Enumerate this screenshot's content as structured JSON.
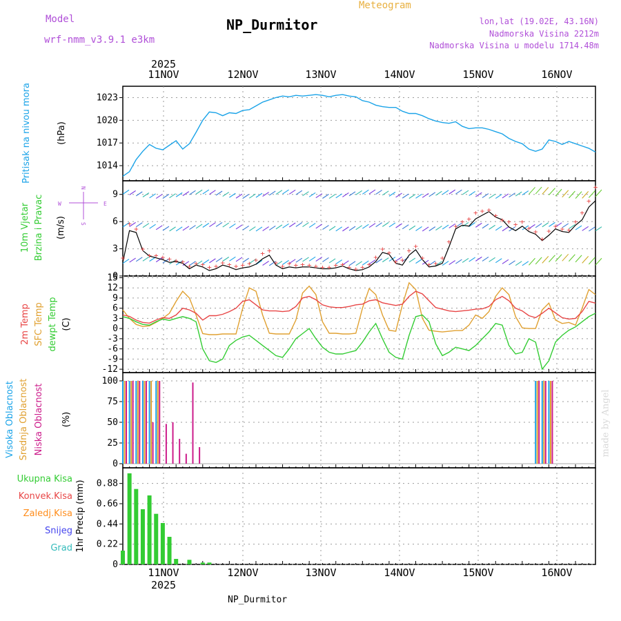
{
  "header": {
    "model_label": "Model",
    "model_name": "wrf-nmm_v3.9.1 e3km",
    "title": "NP_Durmitor",
    "subtitle": "Meteogram",
    "lonlat": "lon,lat (19.02E, 43.16N)",
    "elevation": "Nadmorska Visina 2212m",
    "model_elevation": "Nadmorska Visina u modelu 1714.48m",
    "footer": "NP_Durmitor",
    "watermark": "made by Angel"
  },
  "colors": {
    "pressure": "#1aa3e8",
    "temp2m": "#e84545",
    "sfc": "#e0a030",
    "dewpt": "#33cc33",
    "wind_black": "#000000",
    "wind_red": "#e84545",
    "high_cloud": "#1aa3e8",
    "mid_cloud": "#e0a030",
    "low_cloud": "#cc1a8a",
    "precip_total": "#33cc33",
    "precip_conv": "#e84545",
    "precip_frozen": "#ff8c1a",
    "snow": "#4444ee",
    "graupel": "#33bbbb",
    "purple_text": "#b04fd8",
    "orange_text": "#e8b040"
  },
  "chart_data": [
    {
      "type": "line",
      "title": "Pritisak na nivou mora",
      "ylabel": "(hPa)",
      "x": [
        0,
        1,
        2,
        3,
        4,
        5,
        6,
        7,
        8,
        9,
        10,
        11,
        12,
        13,
        14,
        15,
        16,
        17,
        18,
        19,
        20,
        21,
        22,
        23,
        24,
        25,
        26,
        27,
        28,
        29,
        30,
        31,
        32,
        33,
        34,
        35,
        36,
        37,
        38,
        39,
        40,
        41,
        42,
        43,
        44,
        45,
        46,
        47,
        48,
        49,
        50,
        51,
        52,
        53,
        54,
        55,
        56,
        57,
        58,
        59,
        60,
        61,
        62,
        63,
        64,
        65,
        66,
        67,
        68,
        69,
        70,
        71
      ],
      "y": [
        1012.6,
        1013.2,
        1014.8,
        1015.9,
        1016.8,
        1016.3,
        1016.1,
        1016.7,
        1017.3,
        1016.2,
        1016.9,
        1018.4,
        1020.0,
        1021.1,
        1021.0,
        1020.6,
        1021.0,
        1020.9,
        1021.3,
        1021.4,
        1021.9,
        1022.4,
        1022.7,
        1023.0,
        1023.2,
        1023.1,
        1023.3,
        1023.2,
        1023.3,
        1023.4,
        1023.3,
        1023.1,
        1023.3,
        1023.4,
        1023.2,
        1023.1,
        1022.6,
        1022.4,
        1022.0,
        1021.8,
        1021.7,
        1021.7,
        1021.2,
        1020.9,
        1020.9,
        1020.6,
        1020.2,
        1019.9,
        1019.7,
        1019.6,
        1019.8,
        1019.2,
        1018.9,
        1019.0,
        1019.0,
        1018.8,
        1018.5,
        1018.2,
        1017.6,
        1017.2,
        1016.9,
        1016.2,
        1015.9,
        1016.2,
        1017.4,
        1017.2,
        1016.8,
        1017.2,
        1016.9,
        1016.6,
        1016.3,
        1015.8
      ],
      "yticks": [
        1014,
        1017,
        1020,
        1023
      ],
      "ylim": [
        1012,
        1024.5
      ]
    },
    {
      "type": "line",
      "title": "10m Vjetar Brzina i Pravac",
      "ylabel": "(m/s)",
      "compass": {
        "n": "N",
        "e": "E",
        "w": "W",
        "s": "S"
      },
      "x": [
        0,
        1,
        2,
        3,
        4,
        5,
        6,
        7,
        8,
        9,
        10,
        11,
        12,
        13,
        14,
        15,
        16,
        17,
        18,
        19,
        20,
        21,
        22,
        23,
        24,
        25,
        26,
        27,
        28,
        29,
        30,
        31,
        32,
        33,
        34,
        35,
        36,
        37,
        38,
        39,
        40,
        41,
        42,
        43,
        44,
        45,
        46,
        47,
        48,
        49,
        50,
        51,
        52,
        53,
        54,
        55,
        56,
        57,
        58,
        59,
        60,
        61,
        62,
        63,
        64,
        65,
        66,
        67,
        68,
        69,
        70,
        71
      ],
      "series": [
        {
          "name": "wind speed",
          "values": [
            1.5,
            5.0,
            4.8,
            2.8,
            2.2,
            2.0,
            1.8,
            1.5,
            1.6,
            1.4,
            0.8,
            1.2,
            1.0,
            0.6,
            0.8,
            1.2,
            1.0,
            0.7,
            0.9,
            1.0,
            1.3,
            1.9,
            2.3,
            1.2,
            0.8,
            1.0,
            0.9,
            1.0,
            1.0,
            0.9,
            0.8,
            0.8,
            0.9,
            1.1,
            0.8,
            0.6,
            0.7,
            1.0,
            1.6,
            2.6,
            2.4,
            1.4,
            1.2,
            2.3,
            2.9,
            1.8,
            1.0,
            1.1,
            1.4,
            3.2,
            5.2,
            5.6,
            5.5,
            6.3,
            6.7,
            7.1,
            6.5,
            6.2,
            5.4,
            5.0,
            5.5,
            4.9,
            4.6,
            3.9,
            4.5,
            5.2,
            4.9,
            4.8,
            5.6,
            6.2,
            7.6,
            8.3
          ]
        },
        {
          "name": "wind gust",
          "values": [
            2.0,
            5.8,
            5.2,
            3.0,
            2.3,
            2.3,
            2.1,
            1.9,
            1.7,
            1.6,
            1.1,
            1.4,
            1.3,
            1.0,
            1.1,
            1.5,
            1.3,
            1.1,
            1.2,
            1.4,
            1.8,
            2.5,
            2.8,
            1.5,
            1.1,
            1.4,
            1.2,
            1.3,
            1.2,
            1.1,
            1.0,
            1.0,
            1.2,
            1.3,
            1.0,
            0.8,
            1.0,
            1.3,
            2.1,
            3.0,
            2.6,
            1.6,
            1.8,
            2.8,
            3.3,
            2.0,
            1.3,
            1.4,
            2.0,
            3.8,
            5.5,
            6.0,
            6.3,
            7.0,
            7.2,
            7.3,
            6.7,
            6.2,
            6.0,
            5.7,
            6.0,
            5.3,
            4.9,
            4.1,
            5.0,
            5.5,
            5.2,
            5.1,
            6.0,
            7.0,
            8.3,
            9.8
          ]
        }
      ],
      "yticks": [
        0,
        3,
        6,
        9
      ],
      "ylim": [
        0,
        10.5
      ]
    },
    {
      "type": "line",
      "ylabel": "(C)",
      "labels": [
        "2m Temp",
        "SFC Temp",
        "dewpt Temp"
      ],
      "x": [
        0,
        1,
        2,
        3,
        4,
        5,
        6,
        7,
        8,
        9,
        10,
        11,
        12,
        13,
        14,
        15,
        16,
        17,
        18,
        19,
        20,
        21,
        22,
        23,
        24,
        25,
        26,
        27,
        28,
        29,
        30,
        31,
        32,
        33,
        34,
        35,
        36,
        37,
        38,
        39,
        40,
        41,
        42,
        43,
        44,
        45,
        46,
        47,
        48,
        49,
        50,
        51,
        52,
        53,
        54,
        55,
        56,
        57,
        58,
        59,
        60,
        61,
        62,
        63,
        64,
        65,
        66,
        67,
        68,
        69,
        70,
        71
      ],
      "series": [
        {
          "name": "2m Temp",
          "values": [
            4.0,
            3.6,
            2.5,
            1.8,
            1.6,
            2.5,
            3.2,
            3.0,
            4.0,
            6.0,
            5.5,
            4.5,
            2.5,
            3.8,
            3.8,
            4.2,
            5.0,
            6.0,
            8.0,
            8.5,
            7.0,
            5.5,
            5.2,
            5.2,
            5.0,
            5.2,
            6.5,
            9.0,
            9.5,
            8.5,
            7.0,
            6.4,
            6.2,
            6.2,
            6.5,
            7.0,
            7.2,
            8.2,
            8.5,
            7.6,
            7.2,
            6.8,
            7.2,
            9.5,
            11.0,
            10.2,
            8.2,
            6.2,
            5.7,
            5.2,
            5.0,
            5.2,
            5.4,
            5.7,
            5.8,
            6.5,
            8.5,
            9.5,
            8.2,
            6.0,
            5.2,
            3.8,
            3.2,
            4.5,
            6.0,
            4.6,
            3.2,
            2.8,
            3.0,
            5.0,
            8.0,
            7.5
          ]
        },
        {
          "name": "SFC Temp",
          "values": [
            5.5,
            3.0,
            1.2,
            0.6,
            0.8,
            1.8,
            3.0,
            4.5,
            8.0,
            11.0,
            9.0,
            4.0,
            -1.5,
            -1.8,
            -1.8,
            -1.6,
            -1.6,
            -1.6,
            6.0,
            12.0,
            11.0,
            4.0,
            -1.4,
            -1.6,
            -1.6,
            -1.6,
            2.5,
            10.5,
            12.5,
            10.0,
            2.0,
            -1.4,
            -1.4,
            -1.6,
            -1.6,
            -1.4,
            6.0,
            11.8,
            10.0,
            4.0,
            -0.5,
            -0.8,
            7.0,
            13.5,
            11.5,
            3.0,
            -0.5,
            -0.8,
            -1.0,
            -0.8,
            -0.6,
            -0.6,
            1.0,
            4.0,
            3.0,
            5.0,
            9.5,
            12.0,
            10.0,
            3.5,
            0.2,
            0.0,
            0.0,
            5.5,
            7.5,
            2.5,
            1.5,
            1.8,
            1.0,
            6.0,
            11.5,
            10.0
          ]
        },
        {
          "name": "dewpt Temp",
          "values": [
            3.5,
            3.0,
            2.0,
            1.2,
            1.0,
            2.0,
            2.8,
            2.4,
            3.0,
            3.5,
            3.0,
            2.0,
            -6.0,
            -9.5,
            -10.0,
            -9.0,
            -5.0,
            -3.5,
            -2.5,
            -2.0,
            -3.5,
            -5.0,
            -6.5,
            -8.0,
            -8.5,
            -6.0,
            -3.0,
            -1.5,
            0.0,
            -3.0,
            -5.5,
            -7.0,
            -7.5,
            -7.5,
            -7.0,
            -6.5,
            -4.0,
            -1.0,
            1.5,
            -3.0,
            -7.0,
            -8.5,
            -9.0,
            -2.0,
            3.5,
            4.0,
            2.0,
            -4.5,
            -8.0,
            -7.0,
            -5.5,
            -6.0,
            -6.5,
            -5.0,
            -3.0,
            -1.0,
            1.5,
            1.0,
            -5.0,
            -7.5,
            -7.0,
            -3.0,
            -4.0,
            -12.0,
            -9.5,
            -4.0,
            -2.0,
            -0.5,
            0.5,
            2.0,
            3.5,
            4.5
          ]
        }
      ],
      "yticks": [
        -12,
        -9,
        -6,
        -3,
        0,
        3,
        6,
        9,
        12,
        15
      ],
      "ylim": [
        -13,
        15.5
      ]
    },
    {
      "type": "bar",
      "ylabel": "(%)",
      "labels": [
        "Visoka Oblacnost",
        "Srednja Oblacnost",
        "Niska Oblacnost"
      ],
      "x": [
        0,
        1,
        2,
        3,
        4,
        5,
        6,
        7,
        8,
        9,
        10,
        11,
        12,
        13,
        14,
        15,
        16,
        17,
        18,
        19,
        20,
        21,
        22,
        23,
        24,
        25,
        26,
        27,
        28,
        29,
        30,
        31,
        32,
        33,
        34,
        35,
        36,
        37,
        38,
        39,
        40,
        41,
        42,
        43,
        44,
        45,
        46,
        47,
        48,
        49,
        50,
        51,
        52,
        53,
        54,
        55,
        56,
        57,
        58,
        59,
        60,
        61,
        62,
        63,
        64,
        65,
        66,
        67,
        68,
        69,
        70,
        71
      ],
      "series": [
        {
          "name": "Visoka Oblacnost",
          "values": [
            100,
            100,
            100,
            100,
            100,
            100,
            0,
            0,
            0,
            0,
            0,
            0,
            0,
            0,
            0,
            0,
            0,
            0,
            0,
            0,
            0,
            0,
            0,
            0,
            0,
            0,
            0,
            0,
            0,
            0,
            0,
            0,
            0,
            0,
            0,
            0,
            0,
            0,
            0,
            0,
            0,
            0,
            0,
            0,
            0,
            0,
            0,
            0,
            0,
            0,
            0,
            0,
            0,
            0,
            0,
            0,
            0,
            0,
            0,
            0,
            0,
            0,
            100,
            100,
            100,
            0,
            0,
            0,
            0,
            0,
            0,
            0
          ]
        },
        {
          "name": "Srednja Oblacnost",
          "values": [
            100,
            100,
            100,
            100,
            100,
            100,
            0,
            0,
            0,
            0,
            0,
            0,
            0,
            0,
            0,
            0,
            0,
            0,
            0,
            0,
            0,
            0,
            0,
            0,
            0,
            0,
            0,
            0,
            0,
            0,
            0,
            0,
            0,
            0,
            0,
            0,
            0,
            0,
            0,
            0,
            0,
            0,
            0,
            0,
            0,
            0,
            0,
            0,
            0,
            0,
            0,
            0,
            0,
            0,
            0,
            0,
            0,
            0,
            0,
            0,
            0,
            0,
            100,
            100,
            100,
            0,
            0,
            0,
            0,
            0,
            0,
            0
          ]
        },
        {
          "name": "Niska Oblacnost",
          "values": [
            100,
            100,
            100,
            100,
            50,
            100,
            48,
            50,
            30,
            12,
            98,
            20,
            0,
            0,
            0,
            0,
            0,
            0,
            0,
            0,
            0,
            0,
            0,
            0,
            0,
            0,
            0,
            0,
            0,
            0,
            0,
            0,
            0,
            0,
            0,
            0,
            0,
            0,
            0,
            0,
            0,
            0,
            0,
            0,
            0,
            0,
            0,
            0,
            0,
            0,
            0,
            0,
            0,
            0,
            0,
            0,
            0,
            0,
            0,
            0,
            0,
            0,
            100,
            100,
            100,
            0,
            0,
            0,
            0,
            0,
            0,
            0
          ]
        }
      ],
      "yticks": [
        0,
        25,
        50,
        75,
        100
      ],
      "ylim": [
        -5,
        110
      ]
    },
    {
      "type": "bar",
      "ylabel": "1hr Precip (mm)",
      "labels": [
        "Ukupna Kisa",
        "Konvek.Kisa",
        "Zaledj.Kisa",
        "Snijeg",
        "Grad"
      ],
      "x": [
        0,
        1,
        2,
        3,
        4,
        5,
        6,
        7,
        8,
        9,
        10,
        11,
        12,
        13,
        14,
        15,
        16,
        17,
        18,
        19,
        20,
        21,
        22,
        23,
        24,
        25,
        26,
        27,
        28,
        29,
        30,
        31,
        32,
        33,
        34,
        35,
        36,
        37,
        38,
        39,
        40,
        41,
        42,
        43,
        44,
        45,
        46,
        47,
        48,
        49,
        50,
        51,
        52,
        53,
        54,
        55,
        56,
        57,
        58,
        59,
        60,
        61,
        62,
        63,
        64,
        65,
        66,
        67,
        68,
        69,
        70,
        71
      ],
      "series": [
        {
          "name": "Ukupna Kisa",
          "values": [
            0.15,
            0.99,
            0.82,
            0.6,
            0.75,
            0.55,
            0.45,
            0.3,
            0.06,
            0.0,
            0.05,
            0.0,
            0.02,
            0.02,
            0.0,
            0.0,
            0.0,
            0.0,
            0.0,
            0.0,
            0.0,
            0.0,
            0.0,
            0.0,
            0.0,
            0.0,
            0.0,
            0.0,
            0.0,
            0.0,
            0.0,
            0.0,
            0.0,
            0.0,
            0.0,
            0.0,
            0.0,
            0.0,
            0.0,
            0.0,
            0.0,
            0.0,
            0.0,
            0.0,
            0.0,
            0.0,
            0.0,
            0.0,
            0.0,
            0.0,
            0.0,
            0.0,
            0.0,
            0.0,
            0.0,
            0.0,
            0.0,
            0.0,
            0.0,
            0.0,
            0.0,
            0.0,
            0.0,
            0.0,
            0.0,
            0.0,
            0.0,
            0.0,
            0.0,
            0.0,
            0.0,
            0.0
          ]
        }
      ],
      "yticks": [
        0,
        0.22,
        0.44,
        0.66,
        0.88
      ],
      "ylim": [
        0,
        1.05
      ]
    }
  ],
  "x_axis": {
    "days": [
      "11NOV",
      "12NOV",
      "13NOV",
      "14NOV",
      "15NOV",
      "16NOV"
    ],
    "year": "2025"
  }
}
